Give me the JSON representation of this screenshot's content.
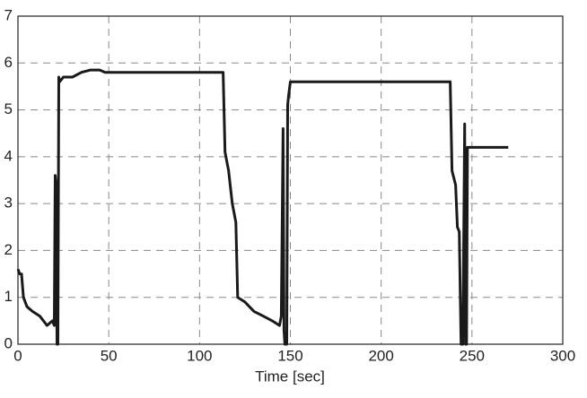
{
  "chart_data": {
    "type": "line",
    "x_label": "Time [sec]",
    "x": [
      0,
      1,
      2,
      3,
      5,
      8,
      12,
      16,
      19,
      20,
      20.5,
      21,
      21.5,
      22,
      22.5,
      23,
      25,
      30,
      35,
      40,
      45,
      48,
      50,
      100,
      113,
      114,
      116,
      118,
      120,
      121,
      125,
      130,
      135,
      140,
      144,
      145,
      146,
      146.5,
      147,
      148,
      148.5,
      149,
      150,
      151,
      200,
      238,
      239,
      241,
      242,
      243,
      244,
      245,
      246,
      246.5,
      247,
      247.5,
      270
    ],
    "series": [
      {
        "color": "#1a1a1a",
        "values": [
          1.6,
          1.5,
          1.5,
          1.0,
          0.8,
          0.7,
          0.6,
          0.4,
          0.5,
          0.4,
          3.6,
          3.4,
          0.0,
          0.0,
          5.7,
          5.6,
          5.7,
          5.7,
          5.8,
          5.85,
          5.85,
          5.8,
          5.8,
          5.8,
          5.8,
          4.1,
          3.7,
          3.0,
          2.6,
          1.0,
          0.9,
          0.7,
          0.6,
          0.5,
          0.4,
          0.6,
          4.6,
          0.3,
          0.0,
          0.0,
          5.1,
          5.3,
          5.6,
          5.6,
          5.6,
          5.6,
          3.7,
          3.4,
          2.5,
          2.4,
          0.0,
          0.0,
          4.7,
          0.0,
          0.0,
          4.2,
          4.2
        ]
      }
    ],
    "xlim": [
      0,
      300
    ],
    "xticks": [
      0,
      50,
      100,
      150,
      200,
      250,
      300
    ],
    "ylim": [
      0,
      7
    ],
    "yticks": [
      0,
      1,
      2,
      3,
      4,
      5,
      6,
      7
    ],
    "grid": true
  }
}
